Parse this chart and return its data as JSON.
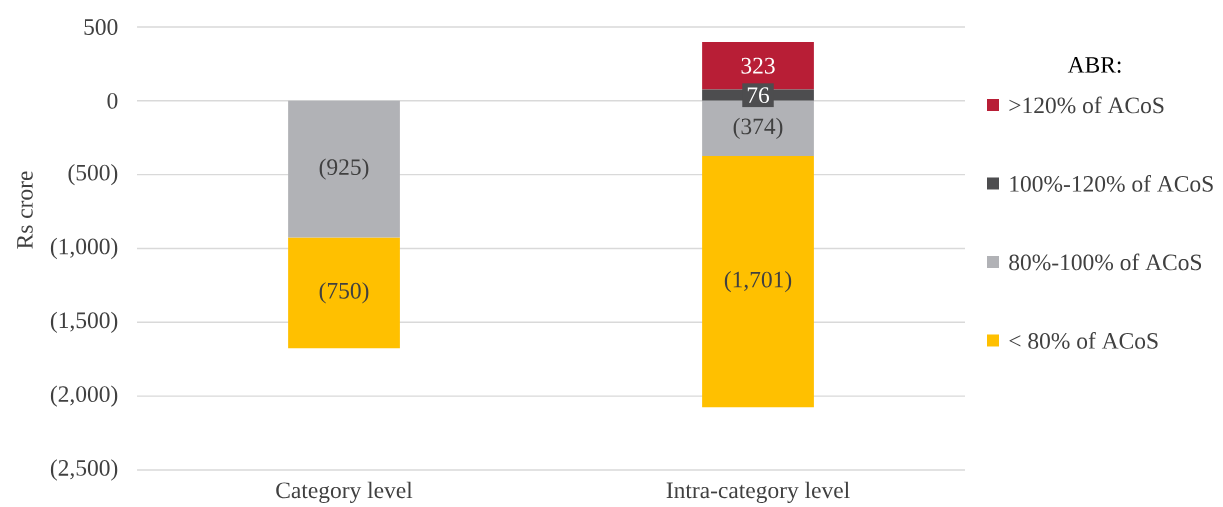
{
  "chart_data": {
    "type": "bar",
    "stacked": true,
    "ylabel": "Rs crore",
    "legend_title": "ABR:",
    "legend": "right",
    "grid": "y",
    "categories": [
      "Category level",
      "Intra-category level"
    ],
    "series": [
      {
        "name": "80%-100% of ACoS",
        "color": "#b1b2b6",
        "values": [
          -925,
          -374
        ],
        "value_labels": [
          "(925)",
          "(374)"
        ]
      },
      {
        "name": "< 80% of ACoS",
        "color": "#ffc000",
        "values": [
          -750,
          -1701
        ],
        "value_labels": [
          "(750)",
          "(1,701)"
        ]
      },
      {
        "name": "100%-120% of ACoS",
        "color": "#4d4d4f",
        "values": [
          null,
          76
        ],
        "value_labels": [
          null,
          "76"
        ]
      },
      {
        "name": ">120% of ACoS",
        "color": "#b81e36",
        "values": [
          null,
          323
        ],
        "value_labels": [
          null,
          "323"
        ]
      }
    ],
    "ylim": [
      -2500,
      500
    ],
    "yticks": [
      500,
      0,
      {
        "value": -500,
        "label": "(500)"
      },
      {
        "value": -1000,
        "label": "(1,000)"
      },
      {
        "value": -1500,
        "label": "(1,500)"
      },
      {
        "value": -2000,
        "label": "(2,000)"
      },
      {
        "value": -2500,
        "label": "(2,500)"
      }
    ]
  }
}
